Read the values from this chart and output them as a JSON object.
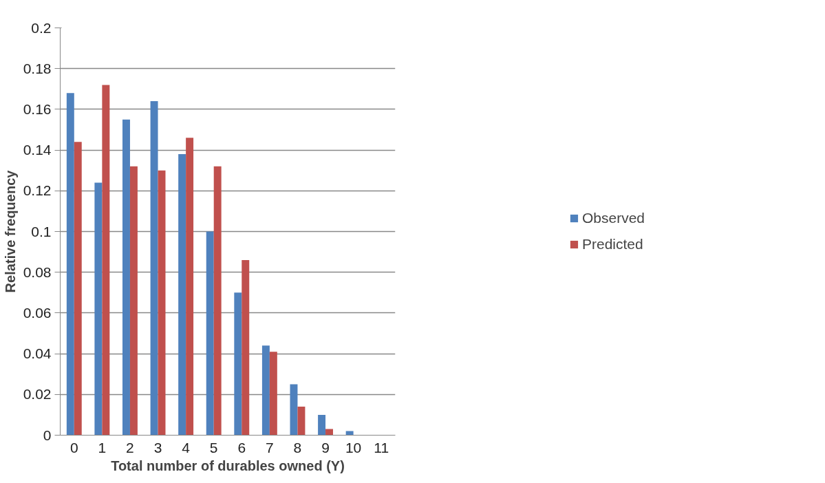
{
  "chart_data": {
    "type": "bar",
    "xlabel": "Total number of durables owned (Y)",
    "ylabel": "Relative frequency",
    "categories": [
      "0",
      "1",
      "2",
      "3",
      "4",
      "5",
      "6",
      "7",
      "8",
      "9",
      "10",
      "11"
    ],
    "series": [
      {
        "name": "Observed",
        "color": "#4f81bd",
        "values": [
          0.168,
          0.124,
          0.155,
          0.164,
          0.138,
          0.1,
          0.07,
          0.044,
          0.025,
          0.01,
          0.002,
          0
        ]
      },
      {
        "name": "Predicted",
        "color": "#c0504d",
        "values": [
          0.144,
          0.172,
          0.132,
          0.13,
          0.146,
          0.132,
          0.086,
          0.041,
          0.014,
          0.003,
          0,
          0
        ]
      }
    ],
    "ylim": [
      0,
      0.2
    ],
    "yticks": [
      0,
      0.02,
      0.04,
      0.06,
      0.08,
      0.1,
      0.12,
      0.14,
      0.16,
      0.18,
      0.2
    ],
    "grid": "y",
    "legend": "right"
  }
}
